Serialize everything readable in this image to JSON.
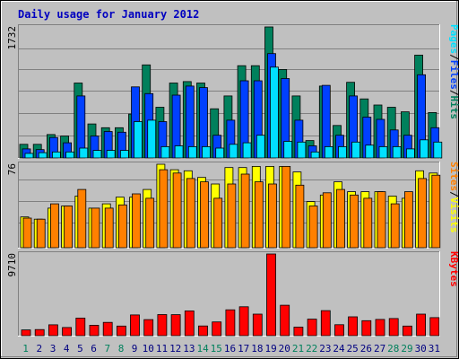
{
  "title": "Daily usage for January 2012",
  "colors": {
    "background": "#c0c0c0",
    "title": "#0000c0",
    "hits": "#00805c",
    "files": "#0040ff",
    "pages": "#00e0ff",
    "visits": "#ffff00",
    "sites": "#ff8000",
    "kbytes": "#ff0000",
    "weekend_label": "#00805c",
    "weekday_label": "#000080"
  },
  "chart_data": [
    {
      "type": "bar",
      "title": "Daily usage for January 2012",
      "categories": [
        "1",
        "2",
        "3",
        "4",
        "5",
        "6",
        "7",
        "8",
        "9",
        "10",
        "11",
        "12",
        "13",
        "14",
        "15",
        "16",
        "17",
        "18",
        "19",
        "20",
        "21",
        "22",
        "23",
        "24",
        "25",
        "26",
        "27",
        "28",
        "29",
        "30",
        "31"
      ],
      "weekend_days": [
        "1",
        "7",
        "8",
        "14",
        "15",
        "21",
        "22",
        "28",
        "29"
      ],
      "ymax_label": "1732",
      "ylim": [
        0,
        1732
      ],
      "grid": true,
      "legend": [
        "Pages",
        "/",
        "Files",
        "/",
        "Hits"
      ],
      "series": [
        {
          "name": "Hits",
          "values": [
            180,
            180,
            310,
            290,
            990,
            450,
            400,
            400,
            580,
            1230,
            670,
            990,
            1010,
            990,
            650,
            820,
            1220,
            1220,
            1732,
            1170,
            820,
            230,
            950,
            430,
            1000,
            780,
            700,
            670,
            610,
            1360,
            600
          ]
        },
        {
          "name": "Files",
          "values": [
            120,
            110,
            270,
            200,
            820,
            290,
            350,
            340,
            940,
            850,
            480,
            830,
            950,
            930,
            300,
            500,
            1020,
            1020,
            1380,
            1050,
            500,
            160,
            960,
            300,
            820,
            540,
            510,
            370,
            300,
            1100,
            400
          ]
        },
        {
          "name": "Pages",
          "values": [
            60,
            70,
            80,
            80,
            130,
            100,
            100,
            100,
            480,
            500,
            150,
            160,
            150,
            150,
            130,
            180,
            200,
            300,
            1200,
            220,
            210,
            80,
            150,
            150,
            210,
            170,
            150,
            150,
            120,
            240,
            210
          ]
        }
      ]
    },
    {
      "type": "bar",
      "categories": [
        "1",
        "2",
        "3",
        "4",
        "5",
        "6",
        "7",
        "8",
        "9",
        "10",
        "11",
        "12",
        "13",
        "14",
        "15",
        "16",
        "17",
        "18",
        "19",
        "20",
        "21",
        "22",
        "23",
        "24",
        "25",
        "26",
        "27",
        "28",
        "29",
        "30",
        "31"
      ],
      "ymax_label": "76",
      "ylim": [
        0,
        76
      ],
      "grid": true,
      "legend": [
        "Sites",
        "/",
        "Visits"
      ],
      "series": [
        {
          "name": "Visits",
          "values": [
            28,
            26,
            36,
            38,
            47,
            36,
            40,
            46,
            46,
            53,
            76,
            71,
            70,
            64,
            58,
            73,
            73,
            74,
            74,
            74,
            69,
            42,
            48,
            60,
            51,
            51,
            51,
            47,
            45,
            70,
            68
          ]
        },
        {
          "name": "Sites",
          "values": [
            27,
            26,
            40,
            38,
            53,
            36,
            36,
            39,
            49,
            45,
            71,
            68,
            63,
            60,
            45,
            58,
            67,
            60,
            58,
            74,
            57,
            38,
            50,
            53,
            48,
            45,
            51,
            40,
            51,
            63,
            66
          ]
        }
      ]
    },
    {
      "type": "bar",
      "categories": [
        "1",
        "2",
        "3",
        "4",
        "5",
        "6",
        "7",
        "8",
        "9",
        "10",
        "11",
        "12",
        "13",
        "14",
        "15",
        "16",
        "17",
        "18",
        "19",
        "20",
        "21",
        "22",
        "23",
        "24",
        "25",
        "26",
        "27",
        "28",
        "29",
        "30",
        "31"
      ],
      "ymax_label": "9710",
      "ylim": [
        0,
        9710
      ],
      "grid": true,
      "legend": [
        "KBytes"
      ],
      "series": [
        {
          "name": "KBytes",
          "values": [
            680,
            730,
            1290,
            970,
            2090,
            1240,
            1580,
            1140,
            2470,
            1910,
            2510,
            2500,
            2940,
            1150,
            1630,
            3070,
            3440,
            2560,
            9710,
            3620,
            1010,
            1960,
            2980,
            1300,
            2240,
            1780,
            1930,
            2040,
            1140,
            2560,
            2140
          ]
        }
      ]
    }
  ]
}
